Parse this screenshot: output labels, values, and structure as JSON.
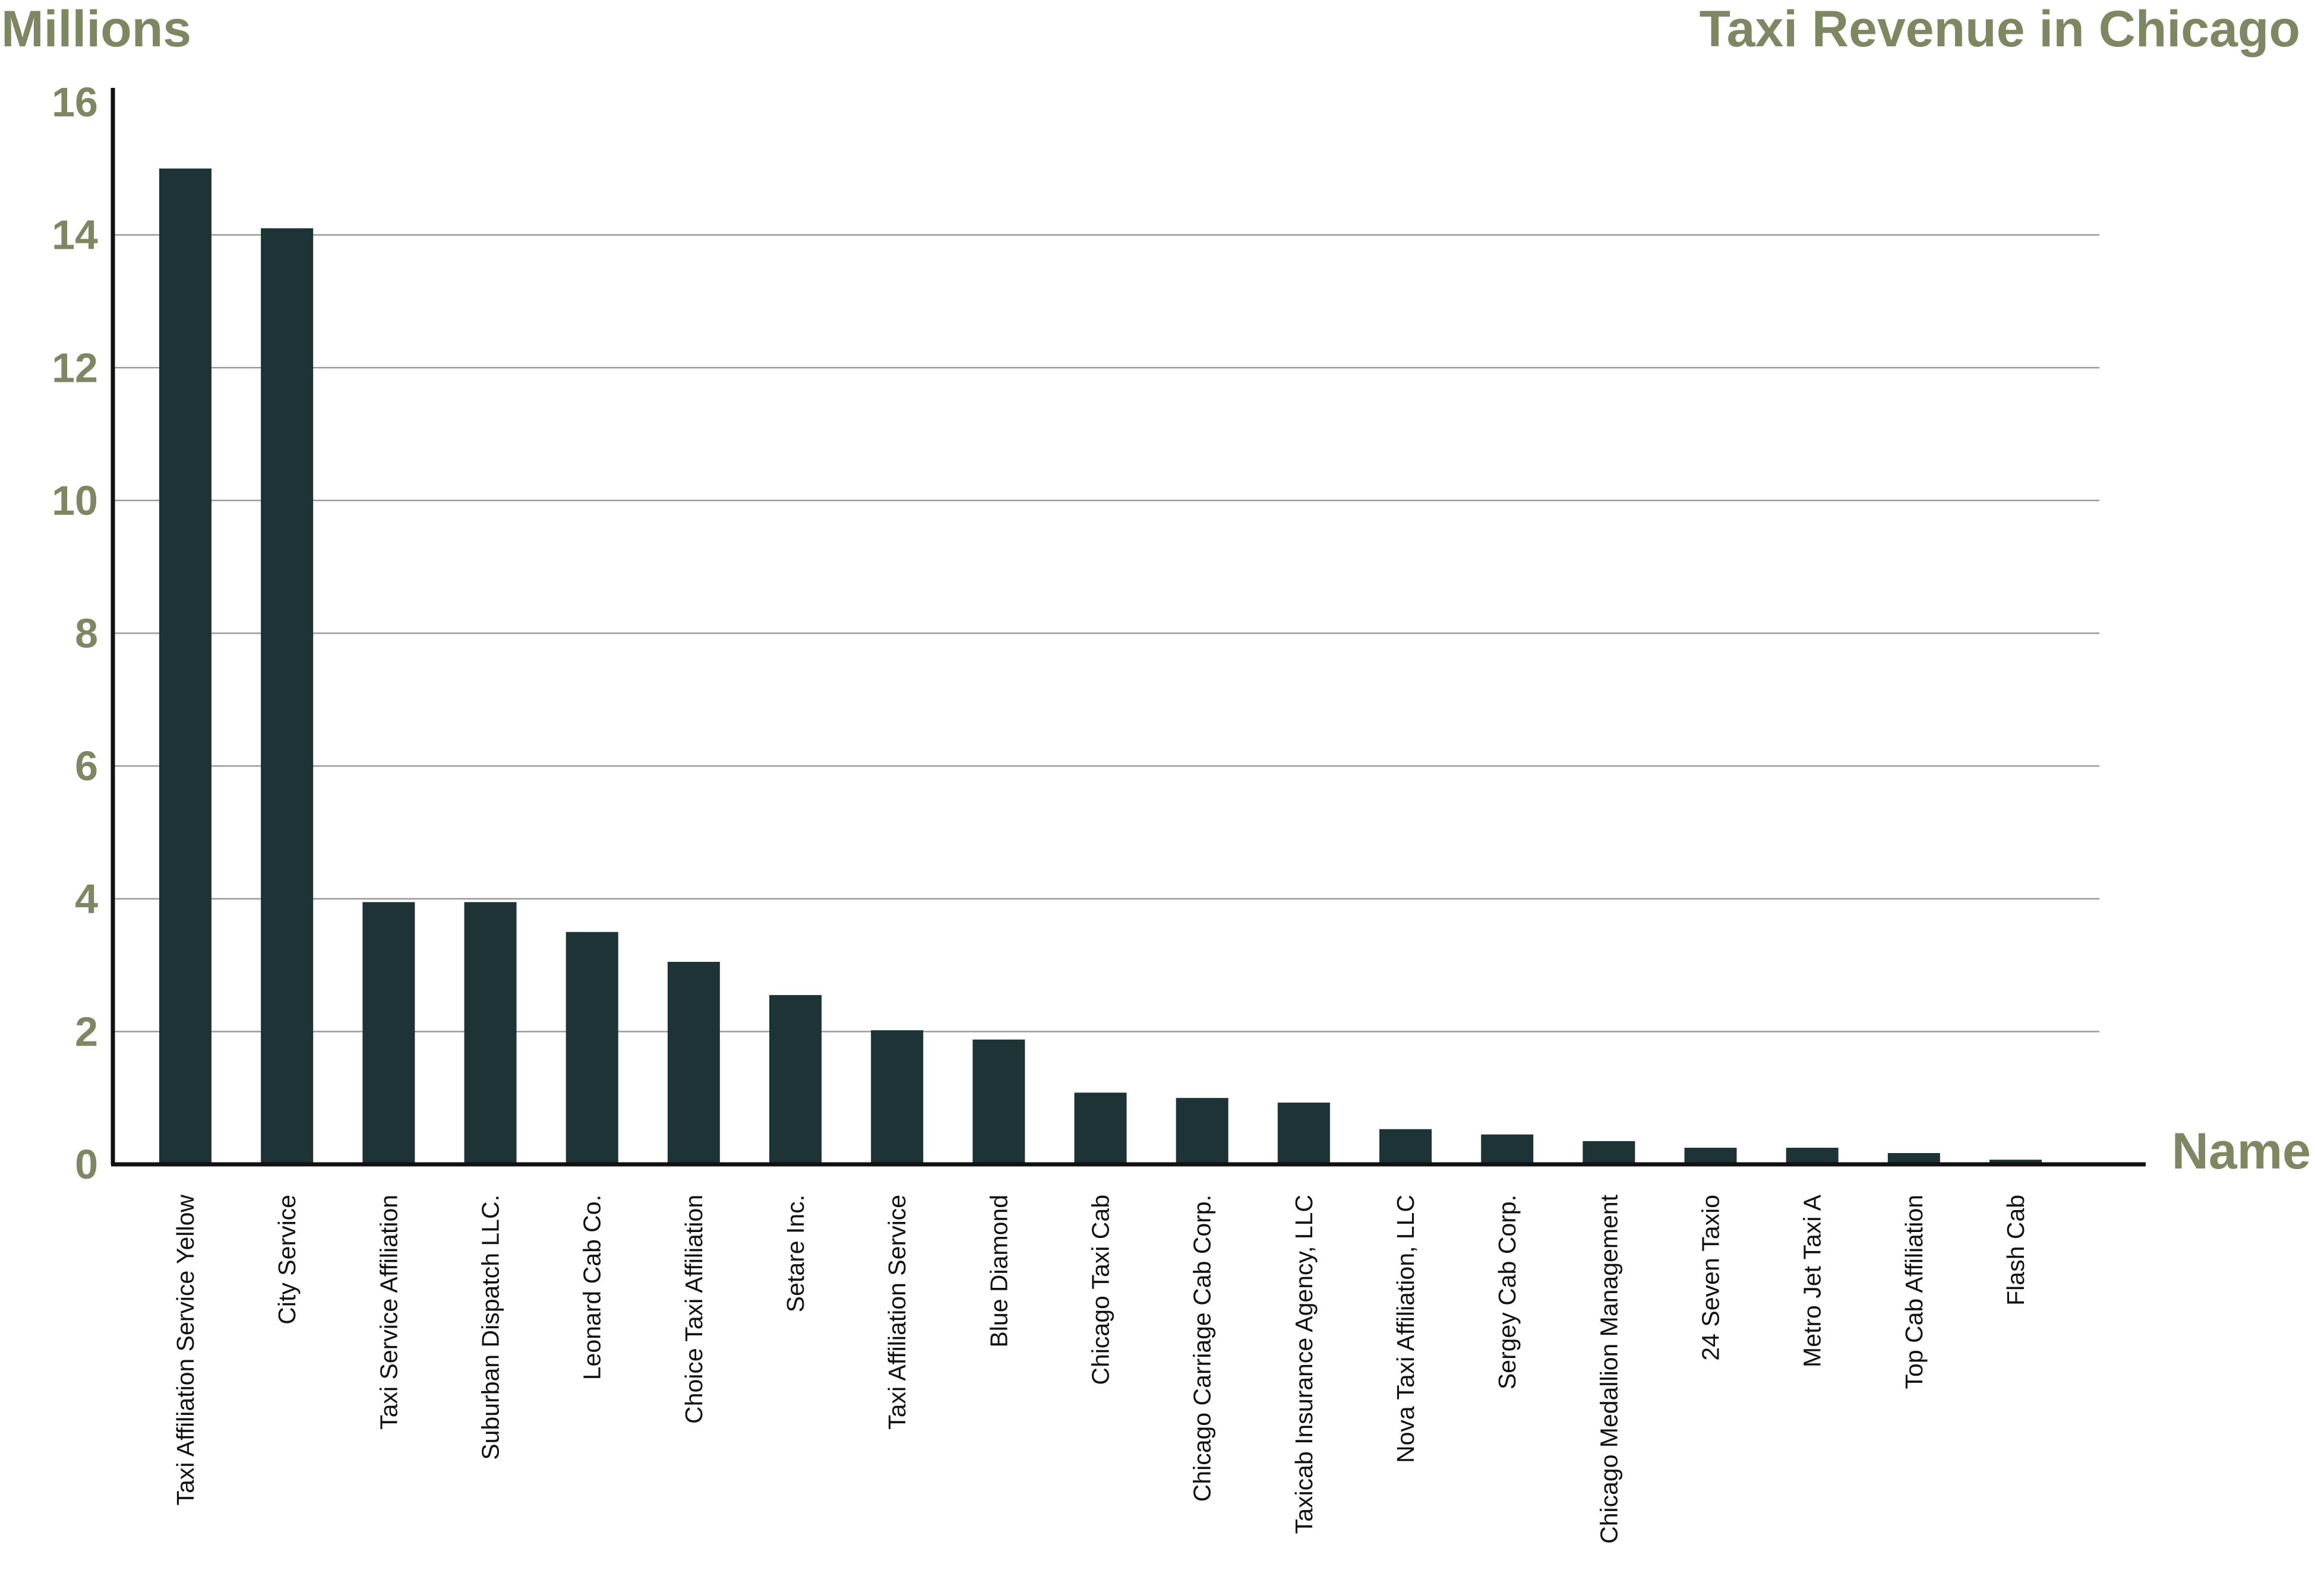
{
  "chart_data": {
    "type": "bar",
    "title": "Taxi Revenue in Chicago",
    "ylabel": "Millions",
    "xlabel": "Name",
    "ylim": [
      0,
      16
    ],
    "yticks": [
      0,
      2,
      4,
      6,
      8,
      10,
      12,
      14,
      16
    ],
    "grid": true,
    "categories": [
      "Taxi Affiliation Service Yellow",
      "City Service",
      "Taxi Service Affiliation",
      "Suburban Dispatch LLC.",
      "Leonard Cab Co.",
      "Choice Taxi Affiliation",
      "Setare Inc.",
      "Taxi Affiliation Service",
      "Blue Diamond",
      "Chicago Taxi Cab",
      "Chicago Carriage Cab Corp.",
      "Taxicab Insurance Agency, LLC",
      "Nova Taxi Affiliation, LLC",
      "Sergey Cab Corp.",
      "Chicago Medallion Management",
      "24 Seven Taxio",
      "Metro Jet Taxi A",
      "Top Cab Affiliation",
      "Flash Cab"
    ],
    "values": [
      15.0,
      14.1,
      3.95,
      3.95,
      3.5,
      3.05,
      2.55,
      2.02,
      1.88,
      1.08,
      1.0,
      0.93,
      0.53,
      0.45,
      0.35,
      0.25,
      0.25,
      0.17,
      0.07
    ],
    "colors": {
      "bar": "#1e3336",
      "accent": "#7d8762",
      "grid": "#9a9a9a",
      "axis": "#111111"
    }
  }
}
